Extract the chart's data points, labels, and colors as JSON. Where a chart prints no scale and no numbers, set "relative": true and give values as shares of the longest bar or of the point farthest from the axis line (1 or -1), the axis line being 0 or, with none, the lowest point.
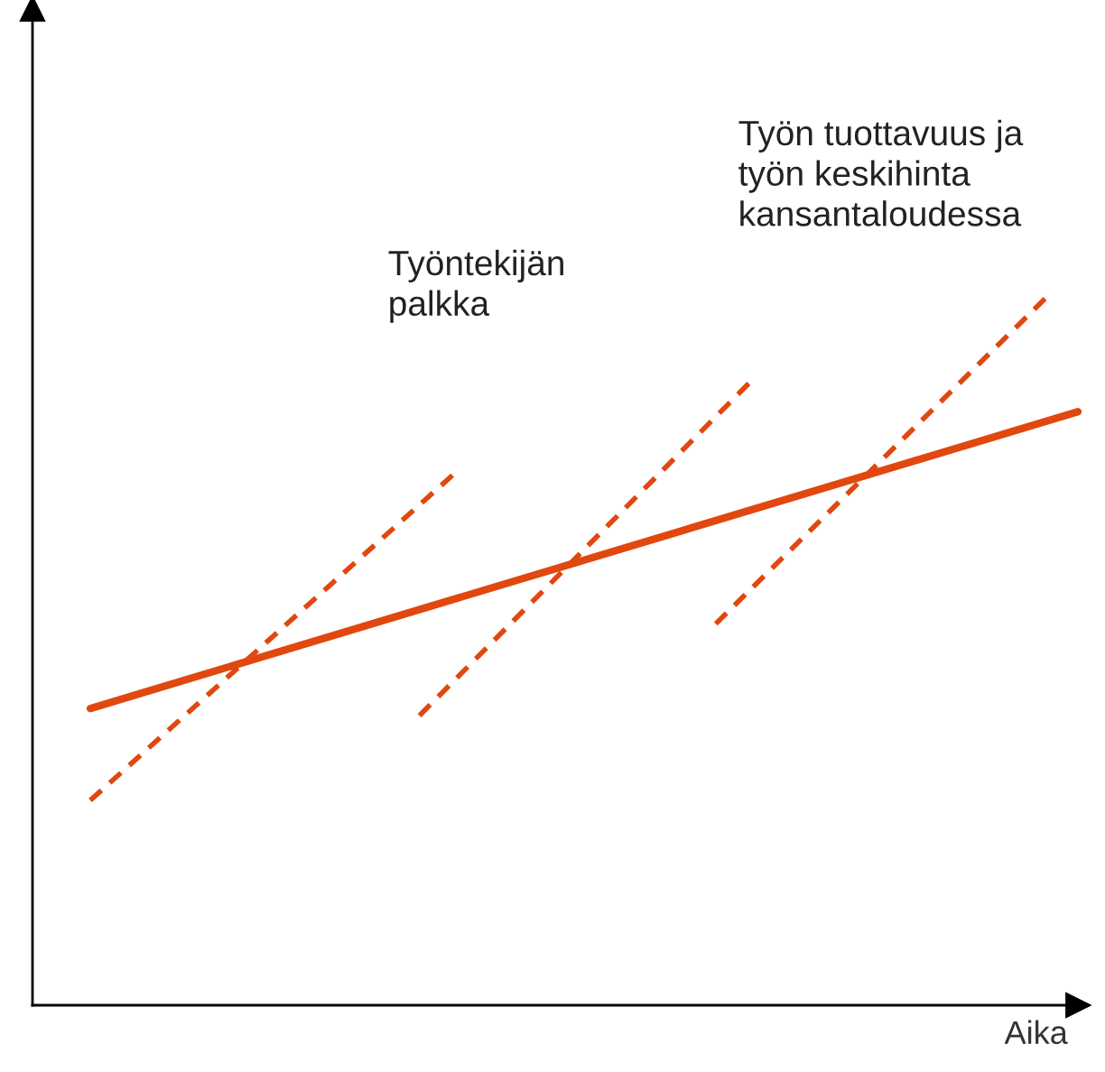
{
  "chart_data": {
    "type": "line",
    "relative": true,
    "xlabel": "Aika",
    "legend": false,
    "marker": "none",
    "categories": [
      null,
      null,
      null,
      null,
      null,
      null,
      null,
      null,
      null,
      null,
      null,
      null,
      null,
      null,
      null,
      null,
      null,
      null,
      null,
      null,
      null,
      null,
      null,
      null,
      null,
      null,
      null,
      null,
      null,
      null,
      null
    ],
    "series": [
      {
        "color": "#e0480f",
        "line_style": "solid",
        "values": [
          0.42,
          null,
          null,
          null,
          null,
          null,
          null,
          null,
          null,
          null,
          null,
          null,
          null,
          null,
          null,
          null,
          null,
          null,
          null,
          null,
          null,
          null,
          null,
          null,
          null,
          null,
          null,
          null,
          null,
          null,
          0.84
        ]
      },
      {
        "color": "#e0480f",
        "line_style": "dashed",
        "values": [
          0.29,
          null,
          null,
          null,
          null,
          null,
          null,
          null,
          null,
          null,
          null,
          0.75,
          null,
          null,
          null,
          null,
          null,
          null,
          null,
          null,
          null,
          null,
          null,
          null,
          null,
          null,
          null,
          null,
          null,
          null,
          null
        ]
      },
      {
        "color": "#e0480f",
        "line_style": "dashed",
        "values": [
          null,
          null,
          null,
          null,
          null,
          null,
          null,
          null,
          null,
          null,
          0.41,
          null,
          null,
          null,
          null,
          null,
          null,
          null,
          null,
          null,
          0.88,
          null,
          null,
          null,
          null,
          null,
          null,
          null,
          null,
          null,
          null
        ]
      },
      {
        "color": "#e0480f",
        "line_style": "dashed",
        "values": [
          null,
          null,
          null,
          null,
          null,
          null,
          null,
          null,
          null,
          null,
          null,
          null,
          null,
          null,
          null,
          null,
          null,
          null,
          null,
          0.54,
          null,
          null,
          null,
          null,
          null,
          null,
          null,
          null,
          null,
          1.0,
          null
        ]
      }
    ],
    "annotations": [
      "Työntekijän\npalkka",
      "Työn tuottavuus ja\ntyön keskihinta\nkansantaloudessa"
    ]
  }
}
